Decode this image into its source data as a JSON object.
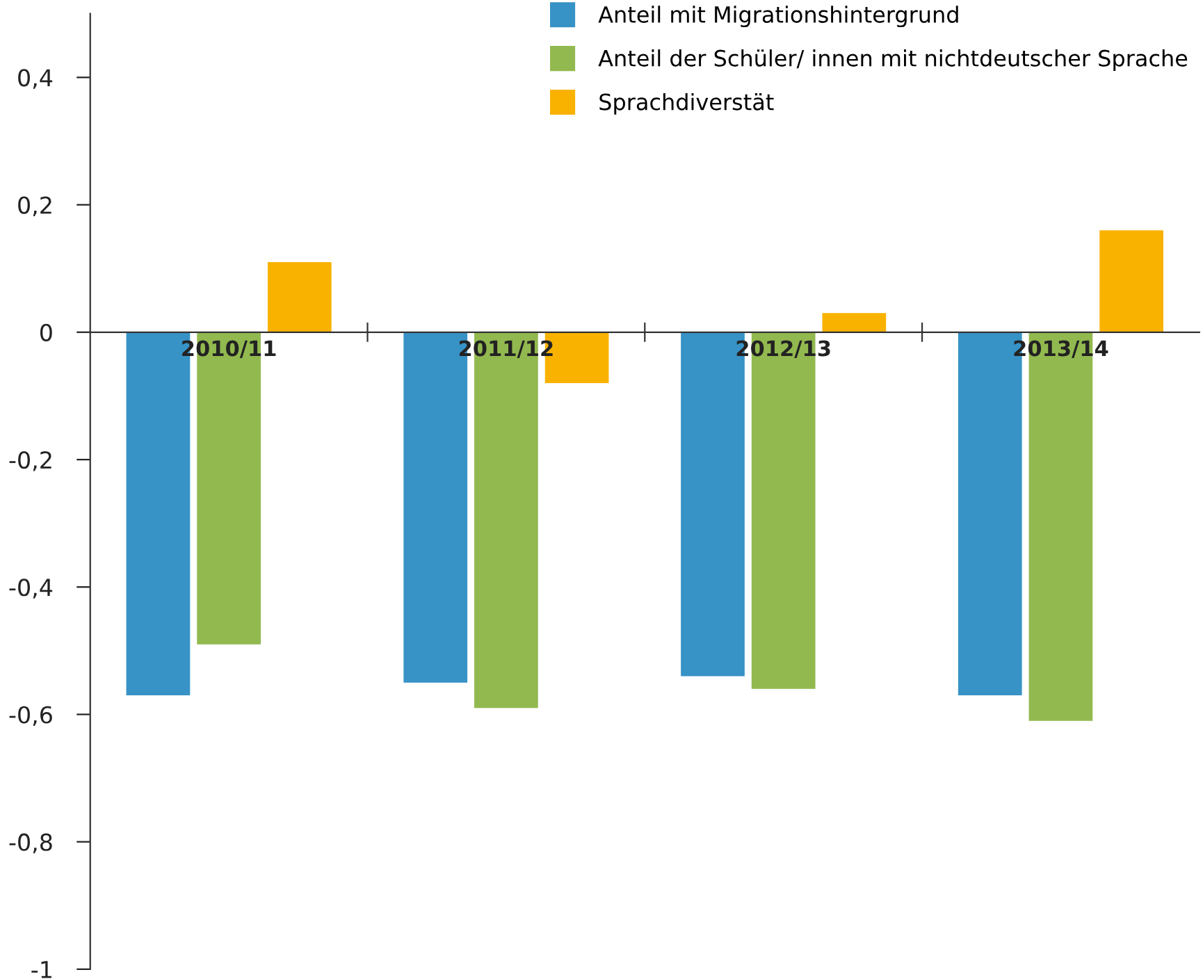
{
  "chart_data": {
    "type": "bar",
    "categories": [
      "2010/11",
      "2011/12",
      "2012/13",
      "2013/14"
    ],
    "series": [
      {
        "name": "Anteil mit Migrationshintergrund",
        "color": "#3792c6",
        "values": [
          -0.57,
          -0.55,
          -0.54,
          -0.57
        ]
      },
      {
        "name": "Anteil der Schüler/ innen mit nichtdeutscher Sprache",
        "color": "#92b94f",
        "values": [
          -0.49,
          -0.59,
          -0.56,
          -0.61
        ]
      },
      {
        "name": "Sprachdiverstät",
        "color": "#f9b200",
        "values": [
          0.11,
          -0.08,
          0.03,
          0.16
        ]
      }
    ],
    "ylim": [
      -1,
      0.5
    ],
    "yticks": [
      {
        "value": -1,
        "label": "-1"
      },
      {
        "value": -0.8,
        "label": "-0,8"
      },
      {
        "value": -0.6,
        "label": "-0,6"
      },
      {
        "value": -0.4,
        "label": "-0,4"
      },
      {
        "value": -0.2,
        "label": "-0,2"
      },
      {
        "value": 0,
        "label": "0"
      },
      {
        "value": 0.2,
        "label": "0,2"
      },
      {
        "value": 0.4,
        "label": "0,4"
      }
    ],
    "grid": false,
    "legend": "top right"
  }
}
